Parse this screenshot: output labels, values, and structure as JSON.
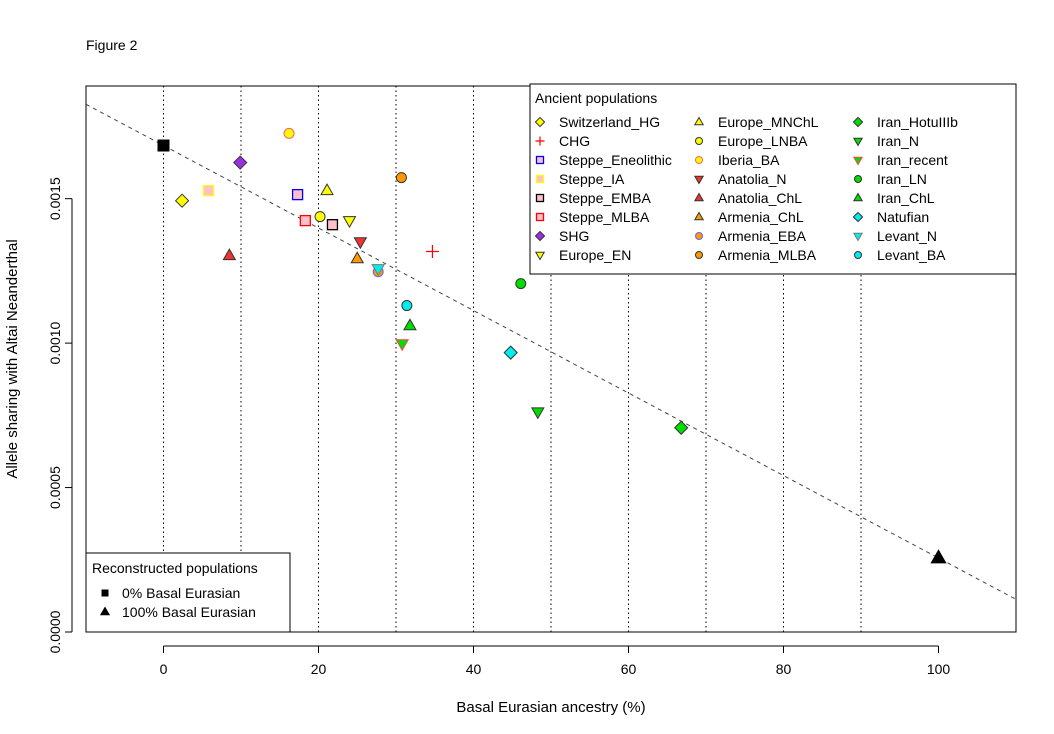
{
  "figure_label": "Figure 2",
  "chart_data": {
    "type": "scatter",
    "xlabel": "Basal Eurasian ancestry (%)",
    "ylabel": "Allele sharing with Altai Neanderthal",
    "xlim": [
      -10,
      110
    ],
    "ylim": [
      0,
      0.00189
    ],
    "x_ticks": [
      0,
      20,
      40,
      60,
      80,
      100
    ],
    "x_tick_labels": [
      "0",
      "20",
      "40",
      "60",
      "80",
      "100"
    ],
    "y_ticks": [
      0,
      0.0005,
      0.001,
      0.0015
    ],
    "y_tick_labels": [
      "0.0000",
      "0.0005",
      "0.0010",
      "0.0015"
    ],
    "vertical_gridlines": [
      0,
      10,
      20,
      30,
      40,
      50,
      60,
      70,
      80,
      90
    ],
    "grid": "dotted vertical",
    "fit_line": {
      "style": "dashed",
      "from": [
        0,
        0.001684
      ],
      "to": [
        100,
        0.000256
      ]
    },
    "legend_ancient": {
      "title": "Ancient populations",
      "placement": "top-right",
      "series": [
        {
          "name": "Switzerland_HG",
          "shape": "diamond",
          "fill": "#ffff00",
          "border": "#333333",
          "x": 2.4,
          "y": 0.001493
        },
        {
          "name": "CHG",
          "shape": "plus",
          "fill": "none",
          "border": "#ff0000",
          "x": 34.7,
          "y": 0.001317
        },
        {
          "name": "Steppe_Eneolithic",
          "shape": "square",
          "fill": "#ffc0cb",
          "border": "#0000ff",
          "x": 17.3,
          "y": 0.001514
        },
        {
          "name": "Steppe_IA",
          "shape": "square",
          "fill": "#ffc0cb",
          "border": "#ffff00",
          "x": 5.8,
          "y": 0.001528
        },
        {
          "name": "Steppe_EMBA",
          "shape": "square",
          "fill": "#ffc0cb",
          "border": "#000000",
          "x": 21.8,
          "y": 0.00141
        },
        {
          "name": "Steppe_MLBA",
          "shape": "square",
          "fill": "#ffc0cb",
          "border": "#ff0000",
          "x": 18.3,
          "y": 0.001424
        },
        {
          "name": "SHG",
          "shape": "diamond",
          "fill": "#9b30e0",
          "border": "#333333",
          "x": 9.9,
          "y": 0.001625
        },
        {
          "name": "Europe_EN",
          "shape": "triangle-down",
          "fill": "#ffff00",
          "border": "#333333",
          "x": 24.0,
          "y": 0.001424
        },
        {
          "name": "Europe_MNChL",
          "shape": "triangle-up",
          "fill": "#ffff00",
          "border": "#333333",
          "x": 21.1,
          "y": 0.001528
        },
        {
          "name": "Europe_LNBA",
          "shape": "circle",
          "fill": "#ffff00",
          "border": "#333333",
          "x": 20.2,
          "y": 0.001438
        },
        {
          "name": "Iberia_BA",
          "shape": "circle",
          "fill": "#ffff00",
          "border": "#ff6060",
          "x": 16.2,
          "y": 0.001726
        },
        {
          "name": "Anatolia_N",
          "shape": "triangle-down",
          "fill": "#ee3333",
          "border": "#333333",
          "x": 25.4,
          "y": 0.001351
        },
        {
          "name": "Anatolia_ChL",
          "shape": "triangle-up",
          "fill": "#ee3333",
          "border": "#333333",
          "x": 8.5,
          "y": 0.001303
        },
        {
          "name": "Armenia_ChL",
          "shape": "triangle-up",
          "fill": "#ff9900",
          "border": "#333333",
          "x": 25.0,
          "y": 0.001292
        },
        {
          "name": "Armenia_EBA",
          "shape": "circle",
          "fill": "#ff9900",
          "border": "#6060ff",
          "x": 27.7,
          "y": 0.001247
        },
        {
          "name": "Armenia_MLBA",
          "shape": "circle",
          "fill": "#ff9900",
          "border": "#333333",
          "x": 30.7,
          "y": 0.001573
        },
        {
          "name": "Iran_HotuIIIb",
          "shape": "diamond",
          "fill": "#00dd00",
          "border": "#333333",
          "x": 66.8,
          "y": 0.000707
        },
        {
          "name": "Iran_N",
          "shape": "triangle-down",
          "fill": "#00dd00",
          "border": "#333333",
          "x": 48.3,
          "y": 0.000762
        },
        {
          "name": "Iran_recent",
          "shape": "triangle-down",
          "fill": "#00dd00",
          "border": "#ff4040",
          "x": 30.8,
          "y": 0.000998
        },
        {
          "name": "Iran_LN",
          "shape": "circle",
          "fill": "#00dd00",
          "border": "#333333",
          "x": 46.1,
          "y": 0.001206
        },
        {
          "name": "Iran_ChL",
          "shape": "triangle-up",
          "fill": "#00dd00",
          "border": "#333333",
          "x": 31.8,
          "y": 0.00106
        },
        {
          "name": "Natufian",
          "shape": "diamond",
          "fill": "#00eeee",
          "border": "#333333",
          "x": 44.8,
          "y": 0.000967
        },
        {
          "name": "Levant_N",
          "shape": "triangle-down",
          "fill": "#00eeee",
          "border": "#777777",
          "x": 27.7,
          "y": 0.001258
        },
        {
          "name": "Levant_BA",
          "shape": "circle",
          "fill": "#00eeee",
          "border": "#333333",
          "x": 31.4,
          "y": 0.00113
        }
      ]
    },
    "legend_reconstructed": {
      "title": "Reconstructed populations",
      "placement": "bottom-left",
      "series": [
        {
          "name": "0% Basal Eurasian",
          "shape": "square-solid",
          "fill": "#000000",
          "border": "#000000",
          "x": 0,
          "y": 0.001684
        },
        {
          "name": "100% Basal Eurasian",
          "shape": "triangle-solid",
          "fill": "#000000",
          "border": "#000000",
          "x": 100,
          "y": 0.000256
        }
      ]
    }
  }
}
